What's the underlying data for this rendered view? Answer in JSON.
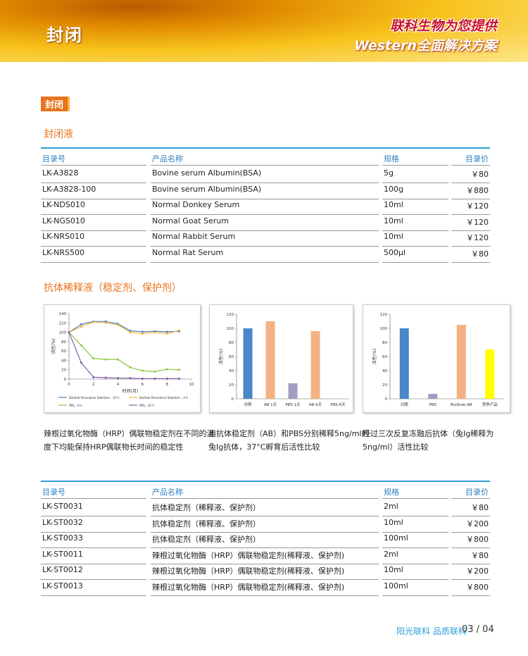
{
  "header": {
    "section": "封闭",
    "slogan1": "联科生物为您提供",
    "slogan2": "Western全面解决方案"
  },
  "tag": "封闭",
  "blocking": {
    "title": "封闭液",
    "table": {
      "columns": [
        "目录号",
        "产品名称",
        "规格",
        "目录价"
      ],
      "rows": [
        [
          "LK-A3828",
          "Bovine serum Albumin(BSA)",
          "5g",
          "￥80"
        ],
        [
          "LK-A3828-100",
          "Bovine serum Albumin(BSA)",
          "100g",
          "￥880"
        ],
        [
          "LK-NDS010",
          "Normal Donkey Serum",
          "10ml",
          "￥120"
        ],
        [
          "LK-NGS010",
          "Normal Goat Serum",
          "10ml",
          "￥120"
        ],
        [
          "LK-NRS010",
          "Normal Rabbit Serum",
          "10ml",
          "￥120"
        ],
        [
          "LK-NRS500",
          "Normal Rat Serum",
          "500μl",
          "￥80"
        ]
      ]
    }
  },
  "diluent": {
    "title": "抗体稀释液（稳定剂、保护剂）",
    "captions": [
      [
        "辣根过氧化物酶（HRP）偶联物稳定剂在不同的温",
        "度下均能保持HRP偶联物长时间的稳定性"
      ],
      [
        "用抗体稳定剂（AB）和PBS分别稀释5ng/ml的",
        "兔Ig抗体，37°C孵育后活性比较"
      ],
      [
        "经过三次反复冻融后抗体（兔Ig稀释为",
        "5ng/ml）活性比较"
      ]
    ],
    "table": {
      "columns": [
        "目录号",
        "产品名称",
        "规格",
        "目录价"
      ],
      "rows": [
        [
          "LK-ST0031",
          "抗体稳定剂（稀释液、保护剂）",
          "2ml",
          "￥80"
        ],
        [
          "LK-ST0032",
          "抗体稳定剂（稀释液、保护剂）",
          "10ml",
          "￥200"
        ],
        [
          "LK-ST0033",
          "抗体稳定剂（稀释液、保护剂）",
          "100ml",
          "￥800"
        ],
        [
          "LK-ST0011",
          "辣根过氧化物酶（HRP）偶联物稳定剂(稀释液、保护剂)",
          "2ml",
          "￥80"
        ],
        [
          "LK-ST0012",
          "辣根过氧化物酶（HRP）偶联物稳定剂(稀释液、保护剂)",
          "10ml",
          "￥200"
        ],
        [
          "LK-ST0013",
          "辣根过氧化物酶（HRP）偶联物稳定剂(稀释液、保护剂)",
          "100ml",
          "￥800"
        ]
      ]
    }
  },
  "footer": {
    "slogan": "阳光联科 品质联科",
    "page": "03 / 04"
  },
  "chart_data": [
    {
      "type": "line",
      "x_label": "时间(月)",
      "y_label": "活性(%)",
      "x": [
        0,
        1,
        2,
        3,
        4,
        5,
        6,
        7,
        8,
        9
      ],
      "xlim": [
        0,
        10
      ],
      "xticks": [
        0,
        2,
        4,
        6,
        8,
        10
      ],
      "ylim": [
        0,
        140
      ],
      "yticks": [
        0,
        20,
        40,
        60,
        80,
        100,
        120,
        140
      ],
      "series": [
        {
          "name": "BioStab Peroxidase Stabilizer，22℃",
          "color": "#4a7ebb",
          "values": [
            100,
            117,
            123,
            123,
            118,
            103,
            101,
            102,
            101,
            102
          ]
        },
        {
          "name": "BioStab Peroxidase Stabilizer，4℃",
          "color": "#f5b43c",
          "values": [
            100,
            112,
            122,
            120,
            116,
            100,
            97,
            100,
            97,
            104
          ]
        },
        {
          "name": "PBS，4℃",
          "color": "#8dc63f",
          "values": [
            100,
            72,
            44,
            42,
            42,
            25,
            18,
            16,
            21,
            20
          ]
        },
        {
          "name": "PBS，22℃",
          "color": "#7f5fa8",
          "values": [
            100,
            35,
            4,
            3,
            2,
            2,
            1,
            1,
            1,
            1
          ]
        }
      ]
    },
    {
      "type": "bar",
      "y_label": "活性(%)",
      "categories": [
        "对照",
        "AB 1天",
        "PBS 1天",
        "AB 6天",
        "PBS 6天"
      ],
      "values": [
        100,
        110,
        22,
        96,
        0
      ],
      "colors": [
        "#4a86c8",
        "#f4b183",
        "#a29bc2",
        "#f4b183",
        "#f4b183"
      ],
      "ylim": [
        0,
        120
      ],
      "yticks": [
        0,
        20,
        40,
        60,
        80,
        100,
        120
      ]
    },
    {
      "type": "bar",
      "y_label": "活性(%)",
      "categories": [
        "对照",
        "PBS",
        "BioStab AB",
        "竞争产品"
      ],
      "values": [
        100,
        7,
        105,
        70
      ],
      "colors": [
        "#4a86c8",
        "#a29bc2",
        "#f4b183",
        "#ffff00"
      ],
      "ylim": [
        0,
        120
      ],
      "yticks": [
        0,
        20,
        40,
        60,
        80,
        100,
        120
      ]
    }
  ]
}
